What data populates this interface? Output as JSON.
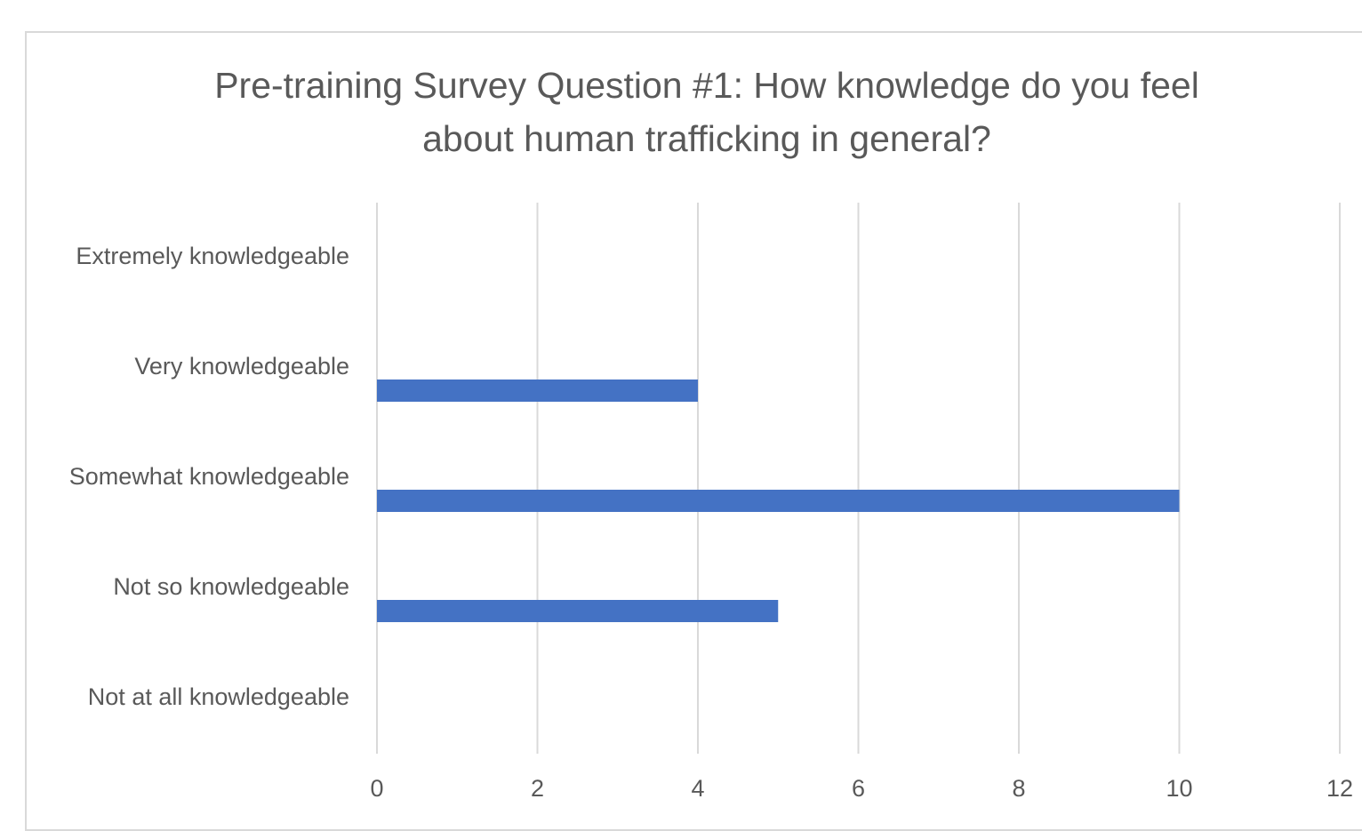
{
  "chart_data": {
    "type": "bar",
    "orientation": "horizontal",
    "title": "Pre-training Survey Question #1: How knowledge do you feel about human trafficking in general?",
    "categories": [
      "Extremely knowledgeable",
      "Very knowledgeable",
      "Somewhat knowledgeable",
      "Not so knowledgeable",
      "Not at all knowledgeable"
    ],
    "values": [
      0,
      4,
      10,
      5,
      0
    ],
    "color": "#4472c4",
    "xlim": [
      0,
      12
    ],
    "xticks": [
      0,
      2,
      4,
      6,
      8,
      10,
      12
    ],
    "grid": true
  }
}
